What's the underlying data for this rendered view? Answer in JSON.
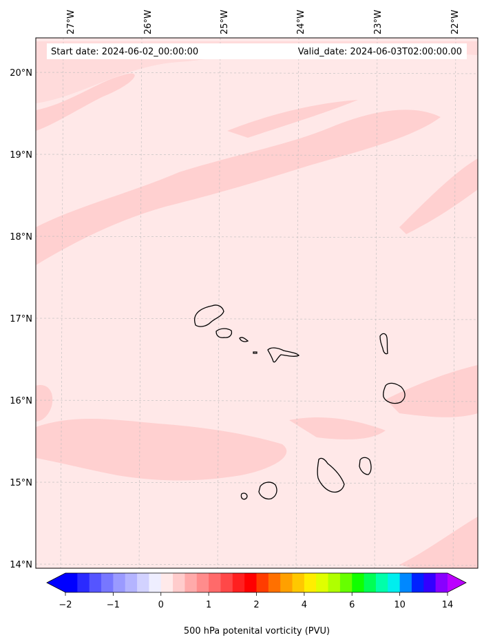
{
  "header": {
    "start_date": "Start date: 2024-06-02_00:00:00",
    "valid_date": "Valid_date: 2024-06-03T02:00:00.00"
  },
  "map": {
    "lon_labels": [
      "27°W",
      "26°W",
      "25°W",
      "24°W",
      "23°W",
      "22°W"
    ],
    "lat_labels": [
      "20°N",
      "19°N",
      "18°N",
      "17°N",
      "16°N",
      "15°N",
      "14°N"
    ],
    "background_color": "#ffe8e8",
    "band_color": "#ffd0d0",
    "gridlines": "on",
    "islands": [
      "Santo Antão",
      "São Vicente",
      "Santa Luzia",
      "São Nicolau",
      "Sal",
      "Boa Vista",
      "Maio",
      "Santiago",
      "Fogo",
      "Brava"
    ]
  },
  "colorbar": {
    "label": "500 hPa potenital vorticity (PVU)",
    "ticks": [
      "−2",
      "−1",
      "0",
      "1",
      "2",
      "4",
      "6",
      "10",
      "14"
    ],
    "colors": [
      "#0000ff",
      "#2a2aff",
      "#5555ff",
      "#7777ff",
      "#9a9aff",
      "#b4b4ff",
      "#d2d2ff",
      "#eeeeff",
      "#ffeaea",
      "#ffcccc",
      "#ffaaaa",
      "#ff8c8c",
      "#ff6a6a",
      "#ff4848",
      "#ff2020",
      "#ff0000",
      "#ff3c00",
      "#ff7000",
      "#ffa000",
      "#ffc800",
      "#ffee00",
      "#e0ff00",
      "#b0ff00",
      "#66ff00",
      "#10ff00",
      "#00ff55",
      "#00ffaa",
      "#00eeee",
      "#0088ff",
      "#0022ff",
      "#3300ff",
      "#8800ff"
    ],
    "extend_low_color": "#0000ff",
    "extend_high_color": "#bb00ff"
  }
}
